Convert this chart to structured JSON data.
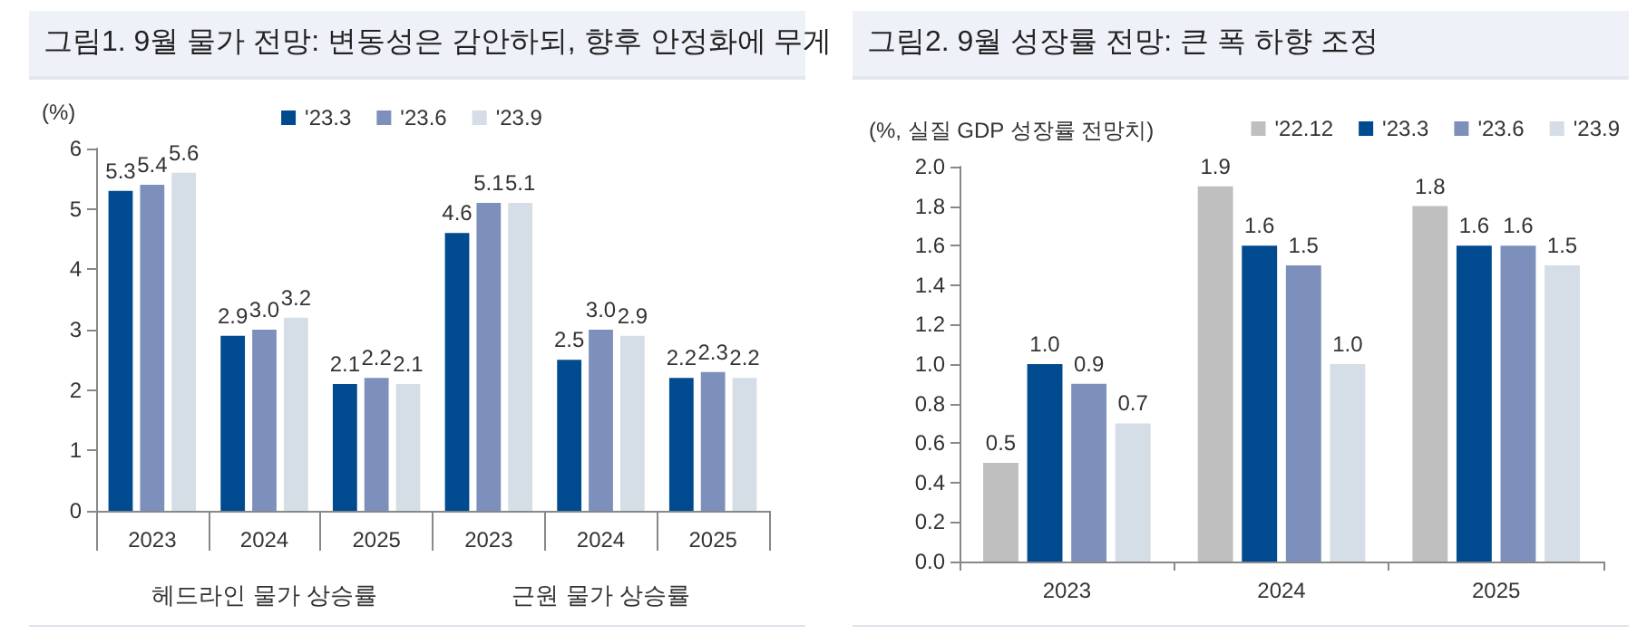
{
  "chart_data": [
    {
      "type": "bar",
      "title": "그림1. 9월 물가 전망: 변동성은 감안하되, 향후 안정화에 무게",
      "ylabel": "(%)",
      "categories": [
        "2023",
        "2024",
        "2025",
        "2023",
        "2024",
        "2025"
      ],
      "series": [
        {
          "name": "'23.3",
          "color": "#004a8f",
          "values": [
            5.3,
            2.9,
            2.1,
            4.6,
            2.5,
            2.2
          ],
          "value_labels": [
            "5.3",
            "2.9",
            "2.1",
            "4.6",
            "2.5",
            "2.2"
          ]
        },
        {
          "name": "'23.6",
          "color": "#7d90bb",
          "values": [
            5.4,
            3.0,
            2.2,
            5.1,
            3.0,
            2.3
          ],
          "value_labels": [
            "5.4",
            "3.0",
            "2.2",
            "5.1",
            "3.0",
            "2.3"
          ]
        },
        {
          "name": "'23.9",
          "color": "#d5dde6",
          "values": [
            5.6,
            3.2,
            2.1,
            5.1,
            2.9,
            2.2
          ],
          "value_labels": [
            "5.6",
            "3.2",
            "2.1",
            "5.1",
            "2.9",
            "2.2"
          ]
        }
      ],
      "ylim": [
        0,
        6
      ],
      "yticks": [
        0,
        1,
        2,
        3,
        4,
        5,
        6
      ],
      "grid": false,
      "legend": "top",
      "annotations": [
        "헤드라인 물가 상승률",
        "근원 물가 상승률"
      ]
    },
    {
      "type": "bar",
      "title": "그림2. 9월 성장률 전망: 큰 폭 하향 조정",
      "ylabel": "(%, 실질 GDP 성장률 전망치)",
      "categories": [
        "2023",
        "2024",
        "2025"
      ],
      "series": [
        {
          "name": "'22.12",
          "color": "#bfbfbf",
          "values": [
            0.5,
            1.9,
            1.8
          ],
          "value_labels": [
            "0.5",
            "1.9",
            "1.8"
          ]
        },
        {
          "name": "'23.3",
          "color": "#004a8f",
          "values": [
            1.0,
            1.6,
            1.6
          ],
          "value_labels": [
            "1.0",
            "1.6",
            "1.6"
          ]
        },
        {
          "name": "'23.6",
          "color": "#7d90bb",
          "values": [
            0.9,
            1.5,
            1.6
          ],
          "value_labels": [
            "0.9",
            "1.5",
            "1.6"
          ]
        },
        {
          "name": "'23.9",
          "color": "#d5dde6",
          "values": [
            0.7,
            1.0,
            1.5
          ],
          "value_labels": [
            "0.7",
            "1.0",
            "1.5"
          ]
        }
      ],
      "ylim": [
        0,
        2
      ],
      "yticks": [
        {
          "value": 0,
          "label": "0.0"
        },
        {
          "value": 0.2,
          "label": "0.2"
        },
        {
          "value": 0.4,
          "label": "0.4"
        },
        {
          "value": 0.6,
          "label": "0.6"
        },
        {
          "value": 0.8,
          "label": "0.8"
        },
        {
          "value": 1,
          "label": "1.0"
        },
        {
          "value": 1.2,
          "label": "1.2"
        },
        {
          "value": 1.4,
          "label": "1.4"
        },
        {
          "value": 1.6,
          "label": "1.6"
        },
        {
          "value": 1.8,
          "label": "1.8"
        },
        {
          "value": 2,
          "label": "2.0"
        }
      ],
      "grid": false,
      "legend": "top right"
    }
  ]
}
